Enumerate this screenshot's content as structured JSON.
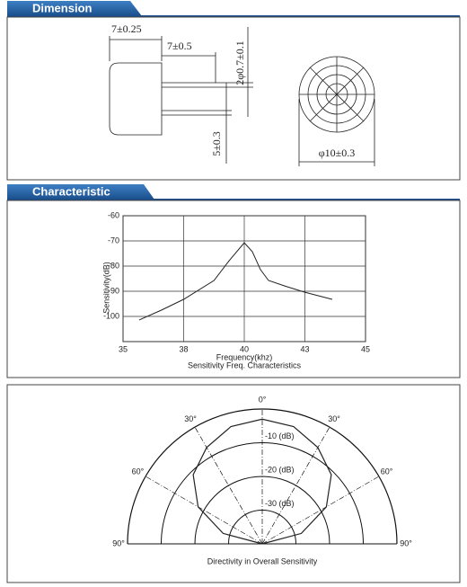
{
  "header": {
    "dimension": "Dimension",
    "characteristic": "Characteristic"
  },
  "dimension": {
    "labels": [
      "7±0.25",
      "7±0.5",
      "2φ0.7±0.1",
      "5±0.3",
      "φ10±0.3"
    ]
  },
  "chart_data": [
    {
      "type": "line",
      "title": "Sensitivity Freq. Characteristics",
      "xlabel": "Frequency(khz)",
      "ylabel": "Sensitivity(dB)",
      "x": [
        35.8,
        36.9,
        38,
        39,
        39.5,
        40,
        40.4,
        40.8,
        41.2,
        42,
        43,
        43.9
      ],
      "values": [
        -101.4,
        -97.5,
        -93.2,
        -85.7,
        -77.9,
        -70.7,
        -74.3,
        -81.4,
        -85.7,
        -87.9,
        -90.4,
        -93.2
      ],
      "color": "#222222",
      "xlim": [
        35,
        45
      ],
      "xticks": [
        35,
        38,
        40,
        43,
        45
      ],
      "ylim": [
        -110,
        -60
      ],
      "yticks": [
        -60,
        -70,
        -80,
        -90,
        -100
      ],
      "grid": true
    },
    {
      "type": "polar",
      "title": "Directivity in Overall Sensitivity",
      "angles": [
        -90,
        -75,
        -60,
        -45,
        -30,
        -15,
        0,
        15,
        30,
        45,
        60,
        75,
        90
      ],
      "values": [
        -40,
        -28,
        -18,
        -11,
        -7,
        -4,
        -3,
        -4,
        -7,
        -11,
        -18,
        -28,
        -40
      ],
      "color": "#222222",
      "rlim": [
        -40,
        0
      ],
      "rticks": [
        {
          "value": -10,
          "label": "-10 (dB)"
        },
        {
          "value": -20,
          "label": "-20 (dB)"
        },
        {
          "value": -30,
          "label": "-30 (dB)"
        }
      ],
      "angleticks": [
        {
          "value": -90,
          "label": "90°"
        },
        {
          "value": -60,
          "label": "60°"
        },
        {
          "value": -30,
          "label": "30°"
        },
        {
          "value": 0,
          "label": "0°"
        },
        {
          "value": 30,
          "label": "30°"
        },
        {
          "value": 60,
          "label": "60°"
        },
        {
          "value": 90,
          "label": "90°"
        }
      ]
    }
  ]
}
